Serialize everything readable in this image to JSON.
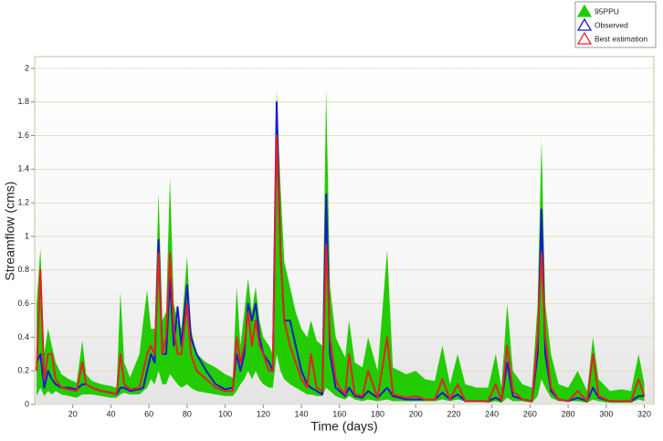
{
  "chart_data": {
    "type": "band-line",
    "x_label": "Time (days)",
    "y_label": "Streamflow (cms)",
    "xlim": [
      0,
      325
    ],
    "xticks": [
      20,
      40,
      60,
      80,
      100,
      120,
      140,
      160,
      180,
      200,
      220,
      240,
      260,
      280,
      300,
      320
    ],
    "ylim": [
      0,
      2.07
    ],
    "yticks": [
      0,
      0.2,
      0.4,
      0.6,
      0.8,
      1,
      1.2,
      1.4,
      1.6,
      1.8,
      2
    ],
    "grid": true,
    "legend": "top-right",
    "x": [
      1,
      3,
      5,
      7,
      9,
      11,
      14,
      18,
      22,
      25,
      27,
      30,
      35,
      40,
      43,
      45,
      47,
      50,
      55,
      57,
      59,
      61,
      63,
      65,
      67,
      69,
      71,
      73,
      75,
      77,
      80,
      82,
      85,
      90,
      95,
      100,
      104,
      106,
      108,
      110,
      112,
      114,
      116,
      118,
      120,
      123,
      125,
      127,
      129,
      131,
      134,
      137,
      140,
      143,
      145,
      148,
      151,
      153,
      155,
      158,
      160,
      163,
      165,
      168,
      172,
      175,
      180,
      185,
      188,
      195,
      200,
      205,
      210,
      214,
      218,
      222,
      226,
      232,
      238,
      242,
      245,
      248,
      251,
      256,
      261,
      264,
      266,
      268,
      271,
      275,
      280,
      285,
      290,
      293,
      296,
      302,
      308,
      313,
      317,
      320
    ],
    "series": [
      {
        "name": "95PPU",
        "color": "#22cc00",
        "lower": [
          0.05,
          0.1,
          0.05,
          0.08,
          0.06,
          0.08,
          0.06,
          0.05,
          0.04,
          0.06,
          0.06,
          0.06,
          0.05,
          0.04,
          0.04,
          0.06,
          0.07,
          0.06,
          0.06,
          0.08,
          0.1,
          0.15,
          0.12,
          0.2,
          0.12,
          0.12,
          0.18,
          0.15,
          0.12,
          0.1,
          0.12,
          0.1,
          0.08,
          0.07,
          0.06,
          0.05,
          0.05,
          0.08,
          0.12,
          0.15,
          0.2,
          0.15,
          0.2,
          0.15,
          0.12,
          0.1,
          0.1,
          0.3,
          0.2,
          0.15,
          0.12,
          0.1,
          0.08,
          0.06,
          0.06,
          0.05,
          0.05,
          0.1,
          0.08,
          0.05,
          0.04,
          0.03,
          0.05,
          0.03,
          0.02,
          0.03,
          0.02,
          0.03,
          0.02,
          0.02,
          0.02,
          0.02,
          0.02,
          0.03,
          0.02,
          0.03,
          0.02,
          0.02,
          0.01,
          0.02,
          0.01,
          0.04,
          0.02,
          0.02,
          0.01,
          0.05,
          0.15,
          0.1,
          0.04,
          0.02,
          0.02,
          0.02,
          0.01,
          0.03,
          0.02,
          0.01,
          0.01,
          0.01,
          0.03,
          0.02
        ],
        "upper": [
          0.6,
          0.93,
          0.3,
          0.45,
          0.35,
          0.25,
          0.18,
          0.15,
          0.13,
          0.38,
          0.18,
          0.14,
          0.12,
          0.11,
          0.1,
          0.67,
          0.25,
          0.16,
          0.3,
          0.5,
          0.68,
          0.45,
          0.45,
          1.26,
          0.5,
          0.55,
          1.35,
          0.6,
          0.5,
          0.45,
          0.88,
          0.45,
          0.3,
          0.25,
          0.22,
          0.18,
          0.16,
          0.7,
          0.35,
          0.55,
          0.75,
          0.55,
          0.7,
          0.5,
          0.4,
          0.35,
          0.3,
          1.87,
          1.3,
          0.85,
          0.7,
          0.55,
          0.45,
          0.4,
          0.5,
          0.38,
          0.35,
          1.88,
          0.7,
          0.4,
          0.35,
          0.28,
          0.5,
          0.25,
          0.22,
          0.4,
          0.2,
          0.92,
          0.22,
          0.18,
          0.2,
          0.15,
          0.14,
          0.35,
          0.12,
          0.3,
          0.12,
          0.1,
          0.1,
          0.3,
          0.1,
          0.6,
          0.2,
          0.12,
          0.1,
          0.6,
          1.58,
          0.6,
          0.3,
          0.12,
          0.1,
          0.2,
          0.08,
          0.4,
          0.15,
          0.08,
          0.09,
          0.08,
          0.3,
          0.12
        ]
      },
      {
        "name": "Observed",
        "color": "#1a1acc",
        "values": [
          0.25,
          0.3,
          0.1,
          0.2,
          0.15,
          0.12,
          0.1,
          0.1,
          0.09,
          0.12,
          0.12,
          0.1,
          0.08,
          0.07,
          0.06,
          0.1,
          0.1,
          0.08,
          0.09,
          0.1,
          0.2,
          0.3,
          0.25,
          0.98,
          0.3,
          0.3,
          0.75,
          0.35,
          0.58,
          0.35,
          0.71,
          0.4,
          0.3,
          0.2,
          0.12,
          0.09,
          0.1,
          0.3,
          0.2,
          0.3,
          0.6,
          0.5,
          0.6,
          0.4,
          0.3,
          0.25,
          0.2,
          1.8,
          0.9,
          0.5,
          0.5,
          0.35,
          0.2,
          0.12,
          0.1,
          0.08,
          0.06,
          1.25,
          0.3,
          0.1,
          0.08,
          0.05,
          0.1,
          0.05,
          0.04,
          0.08,
          0.04,
          0.1,
          0.05,
          0.03,
          0.03,
          0.03,
          0.03,
          0.07,
          0.03,
          0.06,
          0.02,
          0.02,
          0.02,
          0.04,
          0.02,
          0.25,
          0.05,
          0.03,
          0.02,
          0.3,
          1.16,
          0.3,
          0.08,
          0.03,
          0.02,
          0.04,
          0.02,
          0.1,
          0.04,
          0.02,
          0.02,
          0.02,
          0.05,
          0.05
        ]
      },
      {
        "name": "Best estimation",
        "color": "#e02424",
        "values": [
          0.2,
          0.8,
          0.15,
          0.3,
          0.3,
          0.15,
          0.1,
          0.09,
          0.08,
          0.25,
          0.12,
          0.1,
          0.08,
          0.07,
          0.06,
          0.3,
          0.12,
          0.09,
          0.1,
          0.2,
          0.3,
          0.35,
          0.3,
          0.9,
          0.3,
          0.4,
          0.9,
          0.45,
          0.3,
          0.3,
          0.6,
          0.3,
          0.2,
          0.15,
          0.1,
          0.08,
          0.08,
          0.4,
          0.25,
          0.35,
          0.55,
          0.35,
          0.5,
          0.35,
          0.3,
          0.2,
          0.2,
          1.6,
          0.9,
          0.5,
          0.35,
          0.25,
          0.15,
          0.1,
          0.3,
          0.1,
          0.08,
          0.95,
          0.4,
          0.15,
          0.1,
          0.06,
          0.3,
          0.06,
          0.05,
          0.2,
          0.04,
          0.4,
          0.06,
          0.04,
          0.05,
          0.03,
          0.03,
          0.15,
          0.03,
          0.12,
          0.02,
          0.02,
          0.02,
          0.12,
          0.02,
          0.35,
          0.08,
          0.03,
          0.02,
          0.4,
          0.9,
          0.4,
          0.1,
          0.03,
          0.02,
          0.08,
          0.02,
          0.3,
          0.05,
          0.02,
          0.02,
          0.02,
          0.15,
          0.05
        ]
      }
    ]
  }
}
